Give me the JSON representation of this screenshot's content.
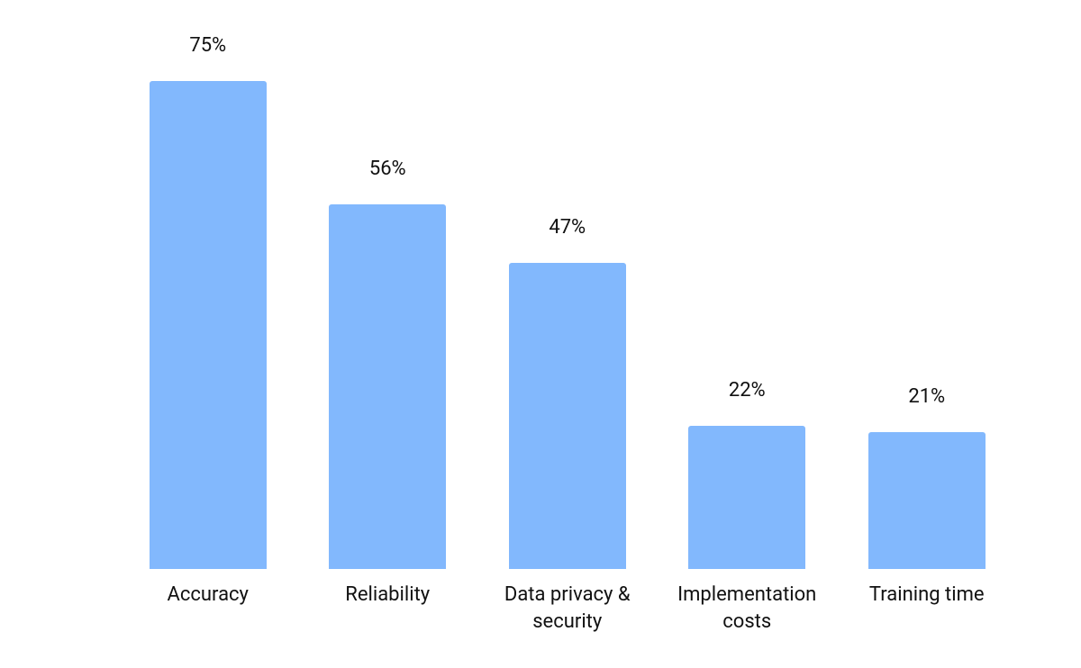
{
  "chart_data": {
    "type": "bar",
    "categories": [
      "Accuracy",
      "Reliability",
      "Data privacy & security",
      "Implementation costs",
      "Training time"
    ],
    "values": [
      75,
      56,
      47,
      22,
      21
    ],
    "value_labels": [
      "75%",
      "56%",
      "47%",
      "22%",
      "21%"
    ],
    "color": "#82b8fd"
  }
}
